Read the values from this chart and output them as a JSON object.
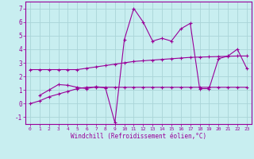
{
  "background_color": "#c8eef0",
  "grid_color": "#aad4d8",
  "line_color": "#990099",
  "xlim": [
    -0.5,
    23.5
  ],
  "ylim": [
    -1.5,
    7.5
  ],
  "xticks": [
    0,
    1,
    2,
    3,
    4,
    5,
    6,
    7,
    8,
    9,
    10,
    11,
    12,
    13,
    14,
    15,
    16,
    17,
    18,
    19,
    20,
    21,
    22,
    23
  ],
  "yticks": [
    -1,
    0,
    1,
    2,
    3,
    4,
    5,
    6,
    7
  ],
  "xlabel": "Windchill (Refroidissement éolien,°C)",
  "s1_x": [
    0,
    1,
    2,
    3,
    4,
    5,
    6,
    7,
    8,
    9,
    10,
    11,
    12,
    13,
    14,
    15,
    16,
    17,
    18,
    19,
    20,
    21,
    22,
    23
  ],
  "s1_y": [
    2.5,
    2.5,
    2.5,
    2.5,
    2.5,
    2.5,
    2.6,
    2.7,
    2.8,
    2.9,
    3.0,
    3.1,
    3.15,
    3.2,
    3.25,
    3.3,
    3.35,
    3.4,
    3.42,
    3.44,
    3.46,
    3.48,
    3.5,
    3.5
  ],
  "s2_x": [
    1,
    2,
    3,
    4,
    5,
    6,
    7,
    8,
    9,
    10,
    11,
    12,
    13,
    14,
    15,
    16,
    17,
    18,
    19,
    20,
    21,
    22,
    23
  ],
  "s2_y": [
    0.6,
    1.0,
    1.4,
    1.35,
    1.2,
    1.1,
    1.25,
    1.15,
    -1.4,
    4.7,
    7.0,
    6.0,
    4.6,
    4.8,
    4.6,
    5.5,
    5.9,
    1.1,
    1.1,
    3.3,
    3.5,
    4.0,
    2.6
  ],
  "s3_x": [
    0,
    1,
    2,
    3,
    4,
    5,
    6,
    7,
    8,
    9,
    10,
    11,
    12,
    13,
    14,
    15,
    16,
    17,
    18,
    19,
    20,
    21,
    22,
    23
  ],
  "s3_y": [
    0.0,
    0.2,
    0.5,
    0.7,
    0.9,
    1.1,
    1.2,
    1.2,
    1.2,
    1.2,
    1.2,
    1.2,
    1.2,
    1.2,
    1.2,
    1.2,
    1.2,
    1.2,
    1.2,
    1.2,
    1.2,
    1.2,
    1.2,
    1.2
  ]
}
